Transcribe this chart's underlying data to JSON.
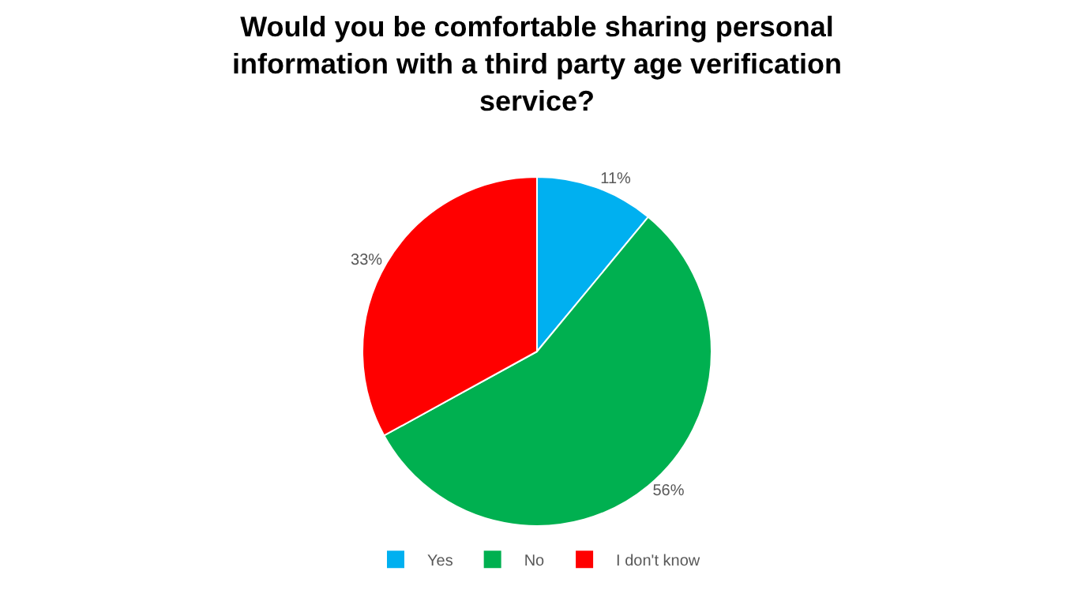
{
  "chart_data": {
    "type": "pie",
    "title": "Would you be comfortable sharing personal information with a third party age verification service?",
    "categories": [
      "Yes",
      "No",
      "I don't know"
    ],
    "values": [
      11,
      56,
      33
    ],
    "colors": [
      "#00b0f0",
      "#00b050",
      "#ff0000"
    ],
    "value_labels": [
      "11%",
      "56%",
      "33%"
    ],
    "legend": "bottom"
  }
}
